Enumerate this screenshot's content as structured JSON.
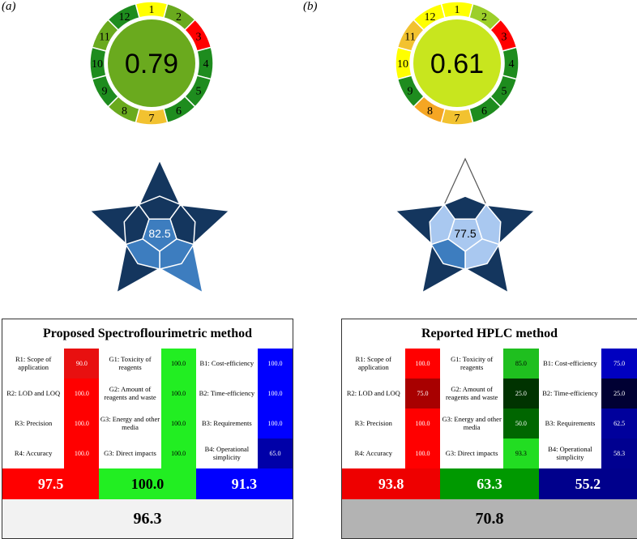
{
  "panels": [
    {
      "label": "(a)",
      "wheel": {
        "score": "0.79",
        "center_color": "#6aaa1e",
        "segments": [
          {
            "n": "1",
            "color": "#ffff00"
          },
          {
            "n": "2",
            "color": "#6aaa1e"
          },
          {
            "n": "3",
            "color": "#ff0000"
          },
          {
            "n": "4",
            "color": "#1e8c1e"
          },
          {
            "n": "5",
            "color": "#1e8c1e"
          },
          {
            "n": "6",
            "color": "#1e8c1e"
          },
          {
            "n": "7",
            "color": "#f2c230"
          },
          {
            "n": "8",
            "color": "#6aaa1e"
          },
          {
            "n": "9",
            "color": "#1e8c1e"
          },
          {
            "n": "10",
            "color": "#1e8c1e"
          },
          {
            "n": "11",
            "color": "#6aaa1e"
          },
          {
            "n": "12",
            "color": "#1e8c1e"
          }
        ]
      },
      "star": {
        "score": "82.5"
      },
      "table": {
        "title": "Proposed Spectroflourimetric method",
        "red": {
          "labels": [
            "R1: Scope of application",
            "R2: LOD and LOQ",
            "R3: Precision",
            "R4: Accuracy"
          ],
          "values": [
            "90.0",
            "100.0",
            "100.0",
            "100.0"
          ],
          "colors": [
            "#e81010",
            "#ff0000",
            "#ff0000",
            "#ff0000"
          ]
        },
        "green": {
          "labels": [
            "G1: Toxicity of reagents",
            "G2: Amount of reagents and waste",
            "G3: Energy and other media",
            "G3: Direct impacts"
          ],
          "values": [
            "100.0",
            "100.0",
            "100.0",
            "100.0"
          ],
          "colors": [
            "#22ee22",
            "#22ee22",
            "#22ee22",
            "#22ee22"
          ]
        },
        "blue": {
          "labels": [
            "B1: Cost-efficiency",
            "B2: Time-efficiency",
            "B3: Requirements",
            "B4: Operational simplicity"
          ],
          "values": [
            "100.0",
            "100.0",
            "100.0",
            "65.0"
          ],
          "colors": [
            "#0000ff",
            "#0000ff",
            "#0000ff",
            "#0000a8"
          ]
        },
        "sums": [
          "97.5",
          "100.0",
          "91.3"
        ],
        "sum_colors": [
          "#ff0000",
          "#22ee22",
          "#0000ff"
        ],
        "total": "96.3",
        "total_color": "#f2f2f2"
      }
    },
    {
      "label": "(b)",
      "wheel": {
        "score": "0.61",
        "center_color": "#c8e61e",
        "segments": [
          {
            "n": "1",
            "color": "#ffff00"
          },
          {
            "n": "2",
            "color": "#9ccf2a"
          },
          {
            "n": "3",
            "color": "#ff0000"
          },
          {
            "n": "4",
            "color": "#1e8c1e"
          },
          {
            "n": "5",
            "color": "#1e8c1e"
          },
          {
            "n": "6",
            "color": "#1e8c1e"
          },
          {
            "n": "7",
            "color": "#f2c230"
          },
          {
            "n": "8",
            "color": "#f5a623"
          },
          {
            "n": "9",
            "color": "#1e8c1e"
          },
          {
            "n": "10",
            "color": "#ffff00"
          },
          {
            "n": "11",
            "color": "#f2c230"
          },
          {
            "n": "12",
            "color": "#ffff00"
          }
        ]
      },
      "star": {
        "score": "77.5"
      },
      "table": {
        "title": "Reported HPLC method",
        "red": {
          "labels": [
            "R1: Scope of application",
            "R2: LOD and LOQ",
            "R3: Precision",
            "R4: Accuracy"
          ],
          "values": [
            "100.0",
            "75.0",
            "100.0",
            "100.0"
          ],
          "colors": [
            "#ff0000",
            "#a80000",
            "#ff0000",
            "#ff0000"
          ]
        },
        "green": {
          "labels": [
            "G1: Toxicity of reagents",
            "G2: Amount of reagents and waste",
            "G3: Energy and other media",
            "G3: Direct impacts"
          ],
          "values": [
            "85.0",
            "25.0",
            "50.0",
            "93.3"
          ],
          "colors": [
            "#1fbf1f",
            "#003300",
            "#006600",
            "#22dd22"
          ]
        },
        "blue": {
          "labels": [
            "B1: Cost-efficiency",
            "B2: Time-efficiency",
            "B3: Requirements",
            "B4: Operational simplicity"
          ],
          "values": [
            "75.0",
            "25.0",
            "62.5",
            "58.3"
          ],
          "colors": [
            "#0000c0",
            "#000033",
            "#00009c",
            "#000090"
          ]
        },
        "sums": [
          "93.8",
          "63.3",
          "55.2"
        ],
        "sum_colors": [
          "#ee0000",
          "#009900",
          "#00008c"
        ],
        "total": "70.8",
        "total_color": "#b3b3b3"
      }
    }
  ],
  "colors": {
    "star_dark": "#14365e",
    "star_mid": "#3d7dbf",
    "star_light": "#a9c8f0",
    "star_outline": "#ffffff"
  }
}
